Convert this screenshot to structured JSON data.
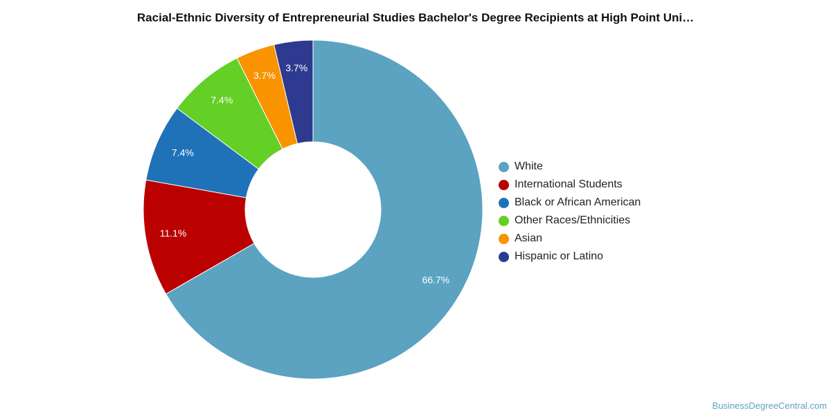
{
  "chart_data": {
    "type": "pie",
    "variant": "donut",
    "title": "Racial-Ethnic Diversity of Entrepreneurial Studies Bachelor's Degree Recipients at High Point Uni…",
    "unit": "%",
    "legend_position": "right",
    "slices": [
      {
        "name": "White",
        "value": 66.7,
        "label": "66.7%",
        "color": "#5ba3c1"
      },
      {
        "name": "International Students",
        "value": 11.1,
        "label": "11.1%",
        "color": "#bb0000"
      },
      {
        "name": "Black or African American",
        "value": 7.4,
        "label": "7.4%",
        "color": "#1f72b8"
      },
      {
        "name": "Other Races/Ethnicities",
        "value": 7.4,
        "label": "7.4%",
        "color": "#64cf25"
      },
      {
        "name": "Asian",
        "value": 3.7,
        "label": "3.7%",
        "color": "#f99300"
      },
      {
        "name": "Hispanic or Latino",
        "value": 3.7,
        "label": "3.7%",
        "color": "#2e3a8f"
      }
    ]
  },
  "watermark": "BusinessDegreeCentral.com"
}
